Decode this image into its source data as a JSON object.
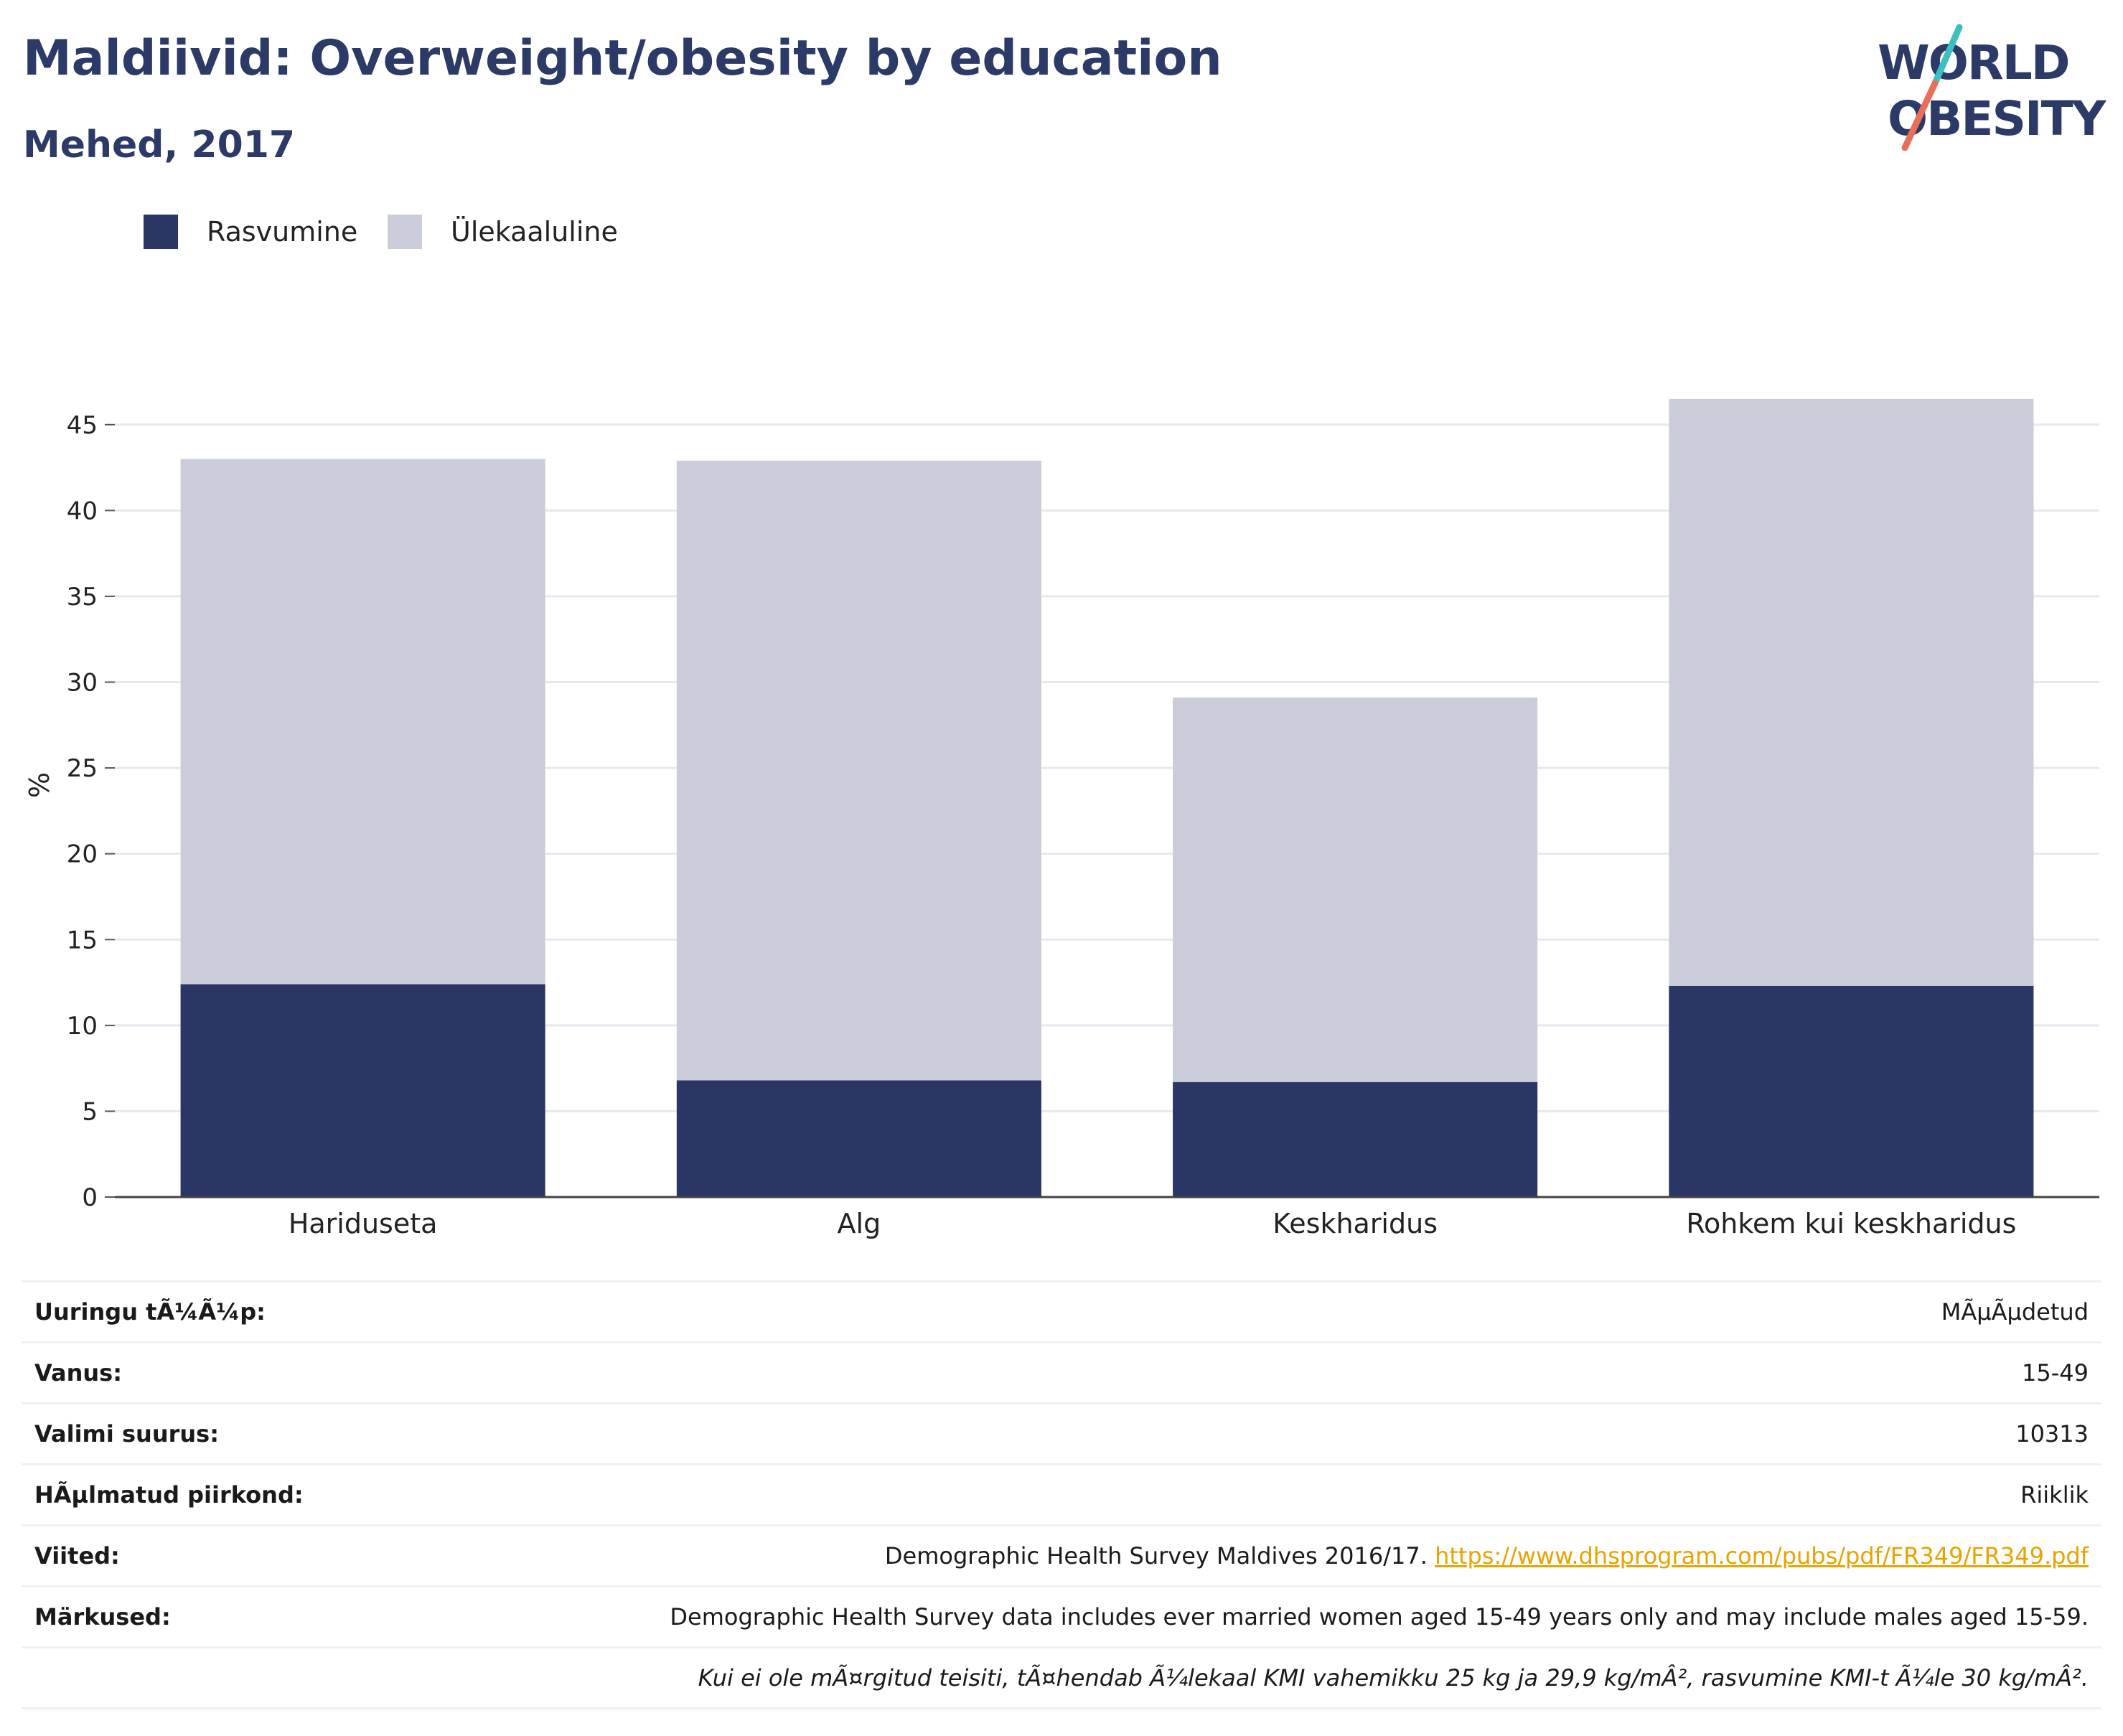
{
  "header": {
    "title": "Maldiivid: Overweight/obesity by education",
    "subtitle": "Mehed, 2017"
  },
  "logo": {
    "line1": "WORLD",
    "line2": "OBESITY"
  },
  "colors": {
    "obesity": "#2a3663",
    "overweight": "#cacdd9",
    "title": "#2b3a67",
    "link": "#e8a300"
  },
  "chart_data": {
    "type": "bar",
    "stacked": true,
    "categories": [
      "Hariduseta",
      "Alg",
      "Keskharidus",
      "Rohkem kui keskharidus"
    ],
    "series": [
      {
        "name": "Rasvumine",
        "values": [
          12.4,
          6.8,
          6.7,
          12.3
        ]
      },
      {
        "name": "Ülekaaluline",
        "values": [
          30.6,
          36.1,
          22.4,
          34.2
        ]
      }
    ],
    "ylabel": "%",
    "xlabel": "",
    "ylim": [
      0,
      48
    ],
    "yticks": [
      0,
      5,
      10,
      15,
      20,
      25,
      30,
      35,
      40,
      45
    ],
    "grid": true,
    "legend": "top-left"
  },
  "info": {
    "rows": [
      {
        "key": "Uuringu tÃ¼Ã¼p:",
        "value": "MÃµÃµdetud"
      },
      {
        "key": "Vanus:",
        "value": "15-49"
      },
      {
        "key": "Valimi suurus:",
        "value": "10313"
      },
      {
        "key": "HÃµlmatud piirkond:",
        "value": "Riiklik"
      }
    ],
    "references_key": "Viited:",
    "references_text": "Demographic Health Survey Maldives 2016/17.",
    "references_link": "https://www.dhsprogram.com/pubs/pdf/FR349/FR349.pdf",
    "notes_key": "Märkused:",
    "notes_text": "Demographic Health Survey data includes ever married women aged 15-49 years only and may include males aged 15-59.",
    "footnote": "Kui ei ole mÃ¤rgitud teisiti, tÃ¤hendab Ã¼lekaal KMI vahemikku 25 kg ja 29,9 kg/mÂ², rasvumine KMI-t Ã¼le 30 kg/mÂ²."
  }
}
